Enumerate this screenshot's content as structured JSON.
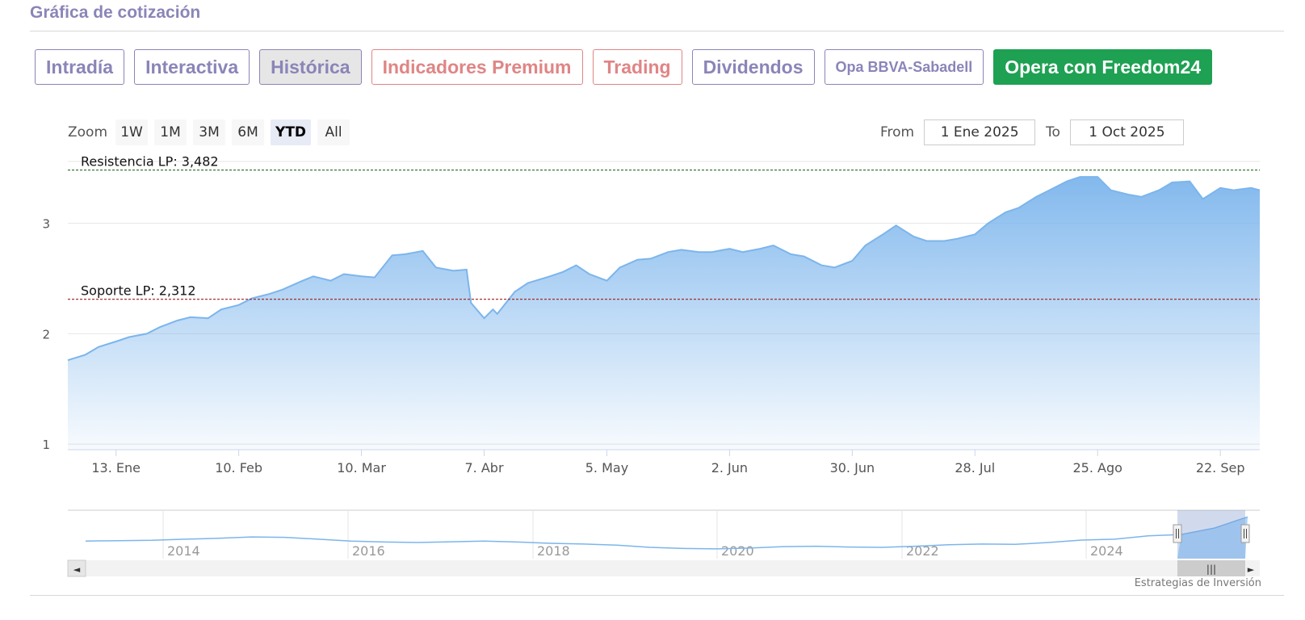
{
  "section": {
    "title": "Gráfica de cotización"
  },
  "tabs": [
    {
      "label": "Intradía",
      "color": "#8a85b8"
    },
    {
      "label": "Interactiva",
      "color": "#8a85b8"
    },
    {
      "label": "Histórica",
      "color": "#8a85b8",
      "active": true
    },
    {
      "label": "Indicadores Premium",
      "color": "#e08585"
    },
    {
      "label": "Trading",
      "color": "#e08585"
    },
    {
      "label": "Dividendos",
      "color": "#8a85b8"
    },
    {
      "label": "Opa BBVA-Sabadell",
      "color": "#8a85b8",
      "small": true
    },
    {
      "label": "Opera con Freedom24",
      "color": "#ffffff",
      "background": "#1ea152",
      "primary": true
    }
  ],
  "zoom": {
    "label": "Zoom",
    "buttons": [
      "1W",
      "1M",
      "3M",
      "6M",
      "YTD",
      "All"
    ],
    "selected": "YTD"
  },
  "range": {
    "from_label": "From",
    "from_value": "1 Ene 2025",
    "to_label": "To",
    "to_value": "1 Oct 2025"
  },
  "credit": "Estrategias de Inversión",
  "colors": {
    "accent": "#8a85b8",
    "premium": "#e08585",
    "freedom": "#1ea152",
    "series": "#7cb5ec",
    "resistance": "#1f6b1f",
    "support": "#9b1c1c",
    "active_tab_bg": "#e6e6e6"
  },
  "chart_data": {
    "type": "area",
    "title": "",
    "xlabel": "",
    "ylabel": "",
    "ylim": [
      0.95,
      3.56
    ],
    "xlim": [
      "2025-01-02",
      "2025-10-01"
    ],
    "y_ticks": [
      1,
      2,
      3
    ],
    "x_ticks": [
      {
        "date": "2025-01-13",
        "label": "13. Ene"
      },
      {
        "date": "2025-02-10",
        "label": "10. Feb"
      },
      {
        "date": "2025-03-10",
        "label": "10. Mar"
      },
      {
        "date": "2025-04-07",
        "label": "7. Abr"
      },
      {
        "date": "2025-05-05",
        "label": "5. May"
      },
      {
        "date": "2025-06-02",
        "label": "2. Jun"
      },
      {
        "date": "2025-06-30",
        "label": "30. Jun"
      },
      {
        "date": "2025-07-28",
        "label": "28. Jul"
      },
      {
        "date": "2025-08-25",
        "label": "25. Ago"
      },
      {
        "date": "2025-09-22",
        "label": "22. Sep"
      }
    ],
    "grid": true,
    "reference_lines": [
      {
        "label": "Resistencia LP: 3,482",
        "value": 3.482,
        "color": "#1f6b1f"
      },
      {
        "label": "Soporte LP: 2,312",
        "value": 2.312,
        "color": "#9b1c1c"
      }
    ],
    "series": [
      {
        "x": [
          "2025-01-02",
          "2025-01-06",
          "2025-01-09",
          "2025-01-13",
          "2025-01-16",
          "2025-01-20",
          "2025-01-23",
          "2025-01-27",
          "2025-01-30",
          "2025-02-03",
          "2025-02-06",
          "2025-02-10",
          "2025-02-13",
          "2025-02-17",
          "2025-02-20",
          "2025-02-24",
          "2025-02-27",
          "2025-03-03",
          "2025-03-06",
          "2025-03-10",
          "2025-03-13",
          "2025-03-17",
          "2025-03-20",
          "2025-03-24",
          "2025-03-27",
          "2025-03-31",
          "2025-04-03",
          "2025-04-04",
          "2025-04-07",
          "2025-04-09",
          "2025-04-10",
          "2025-04-14",
          "2025-04-17",
          "2025-04-22",
          "2025-04-25",
          "2025-04-28",
          "2025-05-01",
          "2025-05-05",
          "2025-05-08",
          "2025-05-12",
          "2025-05-15",
          "2025-05-19",
          "2025-05-22",
          "2025-05-26",
          "2025-05-29",
          "2025-06-02",
          "2025-06-05",
          "2025-06-09",
          "2025-06-12",
          "2025-06-16",
          "2025-06-19",
          "2025-06-23",
          "2025-06-26",
          "2025-06-30",
          "2025-07-03",
          "2025-07-07",
          "2025-07-10",
          "2025-07-14",
          "2025-07-17",
          "2025-07-21",
          "2025-07-24",
          "2025-07-28",
          "2025-07-31",
          "2025-08-04",
          "2025-08-07",
          "2025-08-11",
          "2025-08-14",
          "2025-08-18",
          "2025-08-21",
          "2025-08-25",
          "2025-08-28",
          "2025-09-01",
          "2025-09-04",
          "2025-09-08",
          "2025-09-11",
          "2025-09-15",
          "2025-09-18",
          "2025-09-22",
          "2025-09-25",
          "2025-09-29",
          "2025-10-01"
        ],
        "values": [
          1.76,
          1.81,
          1.88,
          1.93,
          1.97,
          2.0,
          2.06,
          2.12,
          2.15,
          2.14,
          2.22,
          2.26,
          2.32,
          2.36,
          2.4,
          2.47,
          2.52,
          2.48,
          2.54,
          2.52,
          2.51,
          2.71,
          2.72,
          2.75,
          2.6,
          2.57,
          2.58,
          2.28,
          2.14,
          2.22,
          2.18,
          2.38,
          2.46,
          2.52,
          2.56,
          2.62,
          2.54,
          2.48,
          2.6,
          2.67,
          2.68,
          2.74,
          2.76,
          2.74,
          2.74,
          2.77,
          2.74,
          2.77,
          2.8,
          2.72,
          2.7,
          2.62,
          2.6,
          2.66,
          2.8,
          2.9,
          2.98,
          2.88,
          2.84,
          2.84,
          2.86,
          2.9,
          3.0,
          3.1,
          3.14,
          3.24,
          3.3,
          3.38,
          3.42,
          3.42,
          3.3,
          3.26,
          3.24,
          3.3,
          3.37,
          3.38,
          3.22,
          3.32,
          3.3,
          3.32,
          3.3
        ]
      }
    ]
  },
  "navigator": {
    "year_labels": [
      "2014",
      "2016",
      "2018",
      "2020",
      "2022",
      "2024"
    ],
    "scroll_left": "◄",
    "scroll_right": "►",
    "grip": "|||",
    "history": [
      2.0,
      2.02,
      2.04,
      2.1,
      2.15,
      2.22,
      2.2,
      2.1,
      2.0,
      1.95,
      1.92,
      1.96,
      2.0,
      1.95,
      1.88,
      1.84,
      1.78,
      1.66,
      1.6,
      1.58,
      1.62,
      1.7,
      1.72,
      1.68,
      1.66,
      1.72,
      1.8,
      1.84,
      1.82,
      1.92,
      2.05,
      2.1,
      2.28,
      2.35,
      2.7,
      3.3
    ]
  }
}
